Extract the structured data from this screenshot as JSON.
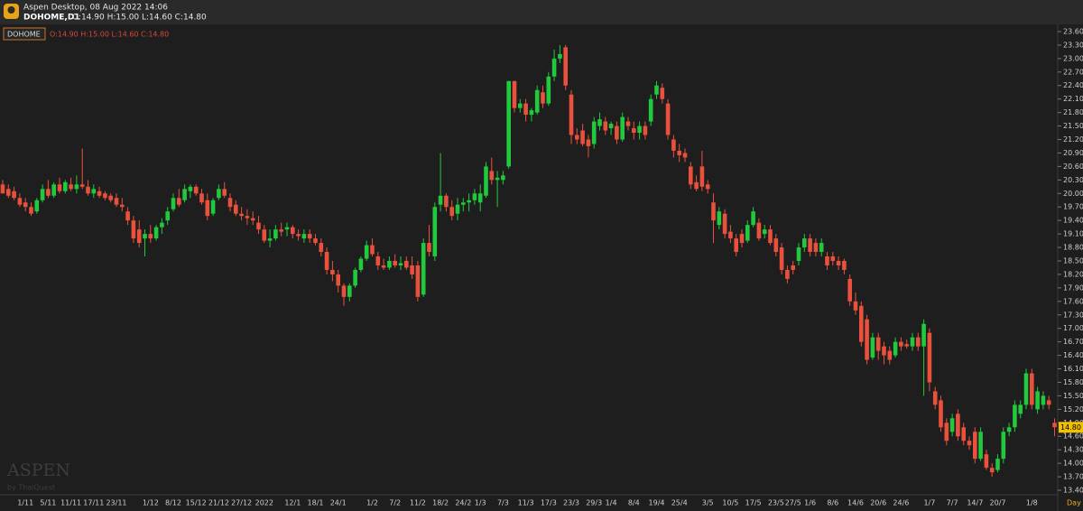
{
  "window": {
    "app_title": "Aspen Desktop, 08 Aug 2022 14:06",
    "symbol_label": "DOHOME,D1",
    "ohlc_text": "O:14.90 H:15.00 L:14.60 C:14.80",
    "watermark": "ASPEN",
    "watermark_sub": "by ThaiQuest",
    "period_label": "Day"
  },
  "chart_data": {
    "type": "candlestick",
    "name": "DOHOME",
    "up_color": "#21c93c",
    "down_color": "#e9513d",
    "current_price_label": "14.80",
    "categories": [
      null,
      null,
      null,
      null,
      "1/11",
      null,
      null,
      null,
      "5/11",
      null,
      null,
      null,
      "11/11",
      null,
      null,
      null,
      "17/11",
      null,
      null,
      null,
      "23/11",
      null,
      null,
      null,
      null,
      null,
      "1/12",
      null,
      null,
      null,
      "8/12",
      null,
      null,
      null,
      "15/12",
      null,
      null,
      null,
      "21/12",
      null,
      null,
      null,
      "27/12",
      null,
      null,
      null,
      "2022",
      null,
      null,
      null,
      null,
      "12/1",
      null,
      null,
      null,
      "18/1",
      null,
      null,
      null,
      "24/1",
      null,
      null,
      null,
      null,
      null,
      "1/2",
      null,
      null,
      null,
      "7/2",
      null,
      null,
      null,
      "11/2",
      null,
      null,
      null,
      "18/2",
      null,
      null,
      null,
      "24/2",
      null,
      null,
      "1/3",
      null,
      null,
      null,
      "7/3",
      null,
      null,
      null,
      "11/3",
      null,
      null,
      null,
      "17/3",
      null,
      null,
      null,
      "23/3",
      null,
      null,
      null,
      "29/3",
      null,
      null,
      "1/4",
      null,
      null,
      null,
      "8/4",
      null,
      null,
      null,
      "19/4",
      null,
      null,
      null,
      "25/4",
      null,
      null,
      null,
      null,
      "3/5",
      null,
      null,
      null,
      "10/5",
      null,
      null,
      null,
      "17/5",
      null,
      null,
      null,
      "23/5",
      null,
      null,
      "27/5",
      null,
      null,
      "1/6",
      null,
      null,
      null,
      "8/6",
      null,
      null,
      null,
      "14/6",
      null,
      null,
      null,
      "20/6",
      null,
      null,
      null,
      "24/6",
      null,
      null,
      null,
      null,
      "1/7",
      null,
      null,
      null,
      "7/7",
      null,
      null,
      null,
      "14/7",
      null,
      null,
      null,
      "20/7",
      null,
      null,
      null,
      null,
      null,
      "1/8",
      null,
      null,
      null,
      null
    ],
    "open": [
      20.2,
      20.1,
      20.05,
      19.9,
      19.8,
      19.7,
      19.6,
      19.85,
      20.1,
      19.95,
      20.2,
      20.05,
      20.2,
      20.1,
      20.2,
      20.15,
      20.0,
      20.05,
      20.0,
      19.95,
      19.9,
      19.75,
      19.6,
      19.4,
      19.2,
      19.0,
      19.1,
      19.0,
      19.25,
      19.4,
      19.65,
      19.9,
      19.85,
      20.05,
      20.15,
      20.0,
      19.85,
      19.55,
      19.9,
      20.1,
      19.9,
      19.75,
      19.55,
      19.5,
      19.45,
      19.35,
      19.2,
      18.95,
      19.0,
      19.2,
      19.2,
      19.25,
      19.1,
      19.0,
      19.1,
      19.0,
      18.9,
      18.7,
      18.3,
      18.2,
      17.95,
      17.7,
      17.95,
      18.3,
      18.55,
      18.85,
      18.6,
      18.4,
      18.35,
      18.5,
      18.4,
      18.5,
      18.4,
      18.4,
      17.75,
      18.9,
      18.6,
      19.75,
      19.95,
      19.7,
      19.55,
      19.75,
      19.8,
      19.85,
      19.8,
      19.95,
      20.5,
      20.3,
      20.3,
      20.6,
      22.5,
      21.9,
      22.0,
      21.75,
      21.8,
      22.25,
      22.0,
      22.6,
      23.0,
      23.25,
      22.2,
      21.3,
      21.4,
      21.2,
      21.1,
      21.5,
      21.6,
      21.45,
      21.5,
      21.2,
      21.6,
      21.45,
      21.35,
      21.5,
      21.6,
      22.2,
      22.35,
      22.0,
      21.2,
      20.95,
      20.9,
      20.6,
      20.25,
      20.6,
      20.2,
      19.8,
      19.3,
      19.55,
      19.15,
      19.0,
      19.1,
      18.95,
      19.3,
      19.35,
      19.1,
      19.2,
      19.0,
      18.8,
      18.3,
      18.4,
      18.5,
      18.8,
      19.0,
      18.9,
      18.7,
      18.6,
      18.6,
      18.5,
      18.5,
      18.1,
      17.6,
      17.5,
      17.2,
      16.35,
      16.8,
      16.6,
      16.5,
      16.4,
      16.7,
      16.65,
      16.6,
      16.8,
      16.6,
      16.9,
      15.6,
      15.4,
      14.9,
      14.7,
      15.1,
      14.8,
      14.5,
      14.7,
      14.1,
      14.2,
      13.9,
      13.85,
      14.1,
      14.7,
      14.8,
      15.1,
      15.3,
      16.0,
      15.2,
      15.3,
      15.4,
      14.9
    ],
    "high": [
      20.3,
      20.2,
      20.15,
      20.0,
      19.9,
      19.8,
      19.9,
      20.2,
      20.3,
      20.25,
      20.35,
      20.3,
      20.35,
      20.4,
      21.0,
      20.3,
      20.2,
      20.15,
      20.05,
      20.0,
      20.0,
      19.9,
      19.7,
      19.5,
      19.4,
      19.2,
      19.3,
      19.3,
      19.45,
      19.7,
      20.0,
      20.1,
      20.2,
      20.2,
      20.2,
      20.1,
      20.0,
      19.9,
      20.2,
      20.25,
      20.0,
      19.85,
      19.7,
      19.65,
      19.6,
      19.5,
      19.3,
      19.2,
      19.3,
      19.35,
      19.35,
      19.3,
      19.2,
      19.2,
      19.2,
      19.1,
      19.0,
      18.8,
      18.5,
      18.3,
      18.0,
      18.0,
      18.35,
      18.6,
      18.95,
      19.0,
      18.7,
      18.55,
      18.6,
      18.65,
      18.6,
      18.6,
      18.6,
      18.5,
      19.0,
      19.3,
      19.8,
      20.9,
      20.0,
      19.85,
      19.9,
      19.9,
      20.0,
      20.1,
      20.2,
      20.7,
      20.8,
      20.5,
      20.5,
      22.5,
      22.5,
      22.1,
      22.1,
      21.9,
      22.4,
      22.4,
      22.7,
      23.2,
      23.3,
      23.3,
      22.3,
      21.45,
      21.55,
      21.3,
      21.7,
      21.8,
      21.7,
      21.6,
      21.6,
      21.8,
      21.7,
      21.6,
      21.6,
      21.6,
      22.2,
      22.5,
      22.45,
      22.1,
      21.3,
      21.1,
      21.0,
      20.7,
      20.4,
      20.95,
      20.3,
      20.0,
      19.7,
      19.65,
      19.3,
      19.1,
      19.2,
      19.4,
      19.7,
      19.45,
      19.3,
      19.3,
      19.1,
      18.9,
      18.4,
      18.5,
      18.9,
      19.1,
      19.1,
      19.0,
      19.0,
      18.7,
      18.7,
      18.6,
      18.55,
      18.2,
      17.8,
      17.6,
      17.3,
      16.9,
      16.9,
      16.7,
      16.6,
      16.8,
      16.8,
      16.75,
      16.9,
      16.9,
      17.2,
      17.0,
      15.7,
      15.5,
      15.0,
      15.1,
      15.2,
      14.9,
      14.6,
      14.8,
      14.8,
      14.3,
      14.0,
      14.2,
      14.8,
      14.9,
      15.4,
      15.4,
      16.1,
      16.1,
      15.7,
      15.6,
      15.5,
      15.0
    ],
    "low": [
      20.0,
      19.9,
      19.85,
      19.7,
      19.6,
      19.5,
      19.55,
      19.8,
      19.9,
      19.9,
      20.0,
      20.0,
      20.05,
      20.0,
      20.1,
      19.95,
      19.9,
      19.9,
      19.85,
      19.8,
      19.7,
      19.6,
      19.3,
      18.9,
      18.8,
      18.6,
      18.9,
      18.95,
      19.1,
      19.3,
      19.6,
      19.7,
      19.8,
      19.9,
      19.95,
      19.75,
      19.4,
      19.5,
      19.85,
      19.9,
      19.6,
      19.5,
      19.4,
      19.3,
      19.3,
      19.1,
      18.9,
      18.8,
      18.95,
      19.05,
      19.05,
      19.0,
      18.95,
      18.9,
      18.9,
      18.85,
      18.6,
      18.2,
      18.05,
      17.8,
      17.5,
      17.6,
      17.9,
      18.25,
      18.5,
      18.6,
      18.3,
      18.3,
      18.3,
      18.35,
      18.3,
      18.3,
      18.1,
      17.6,
      17.7,
      18.6,
      18.5,
      19.6,
      19.6,
      19.4,
      19.4,
      19.6,
      19.6,
      19.75,
      19.6,
      19.9,
      20.2,
      19.7,
      20.2,
      20.55,
      21.8,
      21.8,
      21.6,
      21.6,
      21.75,
      21.9,
      21.95,
      22.5,
      22.9,
      22.3,
      21.1,
      21.1,
      21.05,
      20.8,
      21.0,
      21.4,
      21.3,
      21.3,
      21.1,
      21.15,
      21.4,
      21.2,
      21.2,
      21.2,
      21.5,
      22.1,
      22.0,
      21.2,
      20.8,
      20.7,
      20.7,
      20.1,
      20.05,
      20.05,
      20.0,
      18.9,
      19.2,
      19.0,
      18.9,
      18.6,
      18.8,
      18.9,
      19.25,
      18.95,
      19.0,
      18.85,
      18.6,
      18.2,
      18.0,
      18.2,
      18.4,
      18.7,
      18.6,
      18.6,
      18.6,
      18.3,
      18.4,
      18.3,
      18.2,
      17.5,
      17.3,
      16.6,
      16.2,
      16.3,
      16.3,
      16.2,
      16.2,
      16.35,
      16.5,
      16.55,
      16.5,
      16.5,
      15.5,
      15.6,
      15.2,
      14.7,
      14.4,
      14.6,
      14.5,
      14.4,
      14.3,
      14.0,
      14.05,
      13.85,
      13.7,
      13.8,
      14.0,
      14.6,
      14.7,
      15.0,
      15.2,
      15.2,
      15.1,
      15.2,
      15.2,
      14.6
    ],
    "close": [
      20.0,
      19.95,
      19.9,
      19.75,
      19.7,
      19.55,
      19.85,
      20.1,
      19.95,
      20.2,
      20.05,
      20.25,
      20.1,
      20.2,
      20.15,
      20.0,
      20.1,
      19.95,
      19.9,
      19.85,
      19.75,
      19.7,
      19.4,
      19.0,
      18.9,
      19.1,
      19.0,
      19.25,
      19.35,
      19.6,
      19.9,
      19.75,
      20.1,
      20.15,
      20.0,
      19.8,
      19.5,
      19.85,
      20.1,
      19.95,
      19.7,
      19.55,
      19.5,
      19.45,
      19.4,
      19.2,
      18.95,
      19.0,
      19.2,
      19.15,
      19.25,
      19.1,
      19.05,
      19.1,
      19.0,
      18.9,
      18.7,
      18.3,
      18.2,
      17.95,
      17.7,
      17.95,
      18.3,
      18.55,
      18.85,
      18.65,
      18.4,
      18.35,
      18.5,
      18.4,
      18.45,
      18.35,
      18.2,
      17.7,
      18.9,
      18.7,
      19.7,
      19.95,
      19.7,
      19.5,
      19.75,
      19.8,
      19.85,
      20.0,
      20.0,
      20.6,
      20.3,
      20.35,
      20.4,
      22.5,
      21.9,
      22.0,
      21.75,
      21.85,
      22.3,
      22.0,
      22.6,
      23.0,
      23.1,
      22.4,
      21.3,
      21.2,
      21.1,
      21.05,
      21.6,
      21.65,
      21.4,
      21.55,
      21.2,
      21.7,
      21.5,
      21.35,
      21.5,
      21.3,
      22.1,
      22.4,
      22.1,
      21.3,
      20.95,
      20.85,
      20.8,
      20.2,
      20.1,
      20.15,
      20.1,
      19.4,
      19.6,
      19.1,
      19.0,
      18.7,
      18.9,
      19.3,
      19.6,
      19.0,
      19.2,
      18.9,
      18.7,
      18.3,
      18.1,
      18.3,
      18.8,
      19.0,
      18.7,
      18.7,
      18.9,
      18.4,
      18.5,
      18.4,
      18.3,
      17.6,
      17.4,
      16.7,
      16.3,
      16.8,
      16.5,
      16.4,
      16.3,
      16.7,
      16.6,
      16.6,
      16.8,
      16.6,
      17.1,
      15.8,
      15.3,
      14.8,
      14.5,
      15.0,
      14.6,
      14.5,
      14.4,
      14.1,
      14.7,
      13.9,
      13.8,
      14.1,
      14.7,
      14.8,
      15.3,
      15.3,
      16.0,
      15.3,
      15.6,
      15.5,
      15.3,
      14.8
    ],
    "ylim": [
      13.3,
      23.74
    ],
    "yticks": [
      {
        "value": 13.4,
        "label": "13.40"
      },
      {
        "value": 13.7,
        "label": "13.70"
      },
      {
        "value": 14.0,
        "label": "14.00"
      },
      {
        "value": 14.3,
        "label": "14.30"
      },
      {
        "value": 14.6,
        "label": "14.60"
      },
      {
        "value": 14.9,
        "label": "14.90"
      },
      {
        "value": 15.2,
        "label": "15.20"
      },
      {
        "value": 15.5,
        "label": "15.50"
      },
      {
        "value": 15.8,
        "label": "15.80"
      },
      {
        "value": 16.1,
        "label": "16.10"
      },
      {
        "value": 16.4,
        "label": "16.40"
      },
      {
        "value": 16.7,
        "label": "16.70"
      },
      {
        "value": 17.0,
        "label": "17.00"
      },
      {
        "value": 17.3,
        "label": "17.30"
      },
      {
        "value": 17.6,
        "label": "17.60"
      },
      {
        "value": 17.9,
        "label": "17.90"
      },
      {
        "value": 18.2,
        "label": "18.20"
      },
      {
        "value": 18.5,
        "label": "18.50"
      },
      {
        "value": 18.8,
        "label": "18.80"
      },
      {
        "value": 19.1,
        "label": "19.10"
      },
      {
        "value": 19.4,
        "label": "19.40"
      },
      {
        "value": 19.7,
        "label": "19.70"
      },
      {
        "value": 20.0,
        "label": "20.00"
      },
      {
        "value": 20.3,
        "label": "20.30"
      },
      {
        "value": 20.6,
        "label": "20.60"
      },
      {
        "value": 20.9,
        "label": "20.90"
      },
      {
        "value": 21.2,
        "label": "21.20"
      },
      {
        "value": 21.5,
        "label": "21.50"
      },
      {
        "value": 21.8,
        "label": "21.80"
      },
      {
        "value": 22.1,
        "label": "22.10"
      },
      {
        "value": 22.4,
        "label": "22.40"
      },
      {
        "value": 22.7,
        "label": "22.70"
      },
      {
        "value": 23.0,
        "label": "23.00"
      },
      {
        "value": 23.3,
        "label": "23.30"
      },
      {
        "value": 23.6,
        "label": "23.60"
      }
    ],
    "grid": false
  }
}
